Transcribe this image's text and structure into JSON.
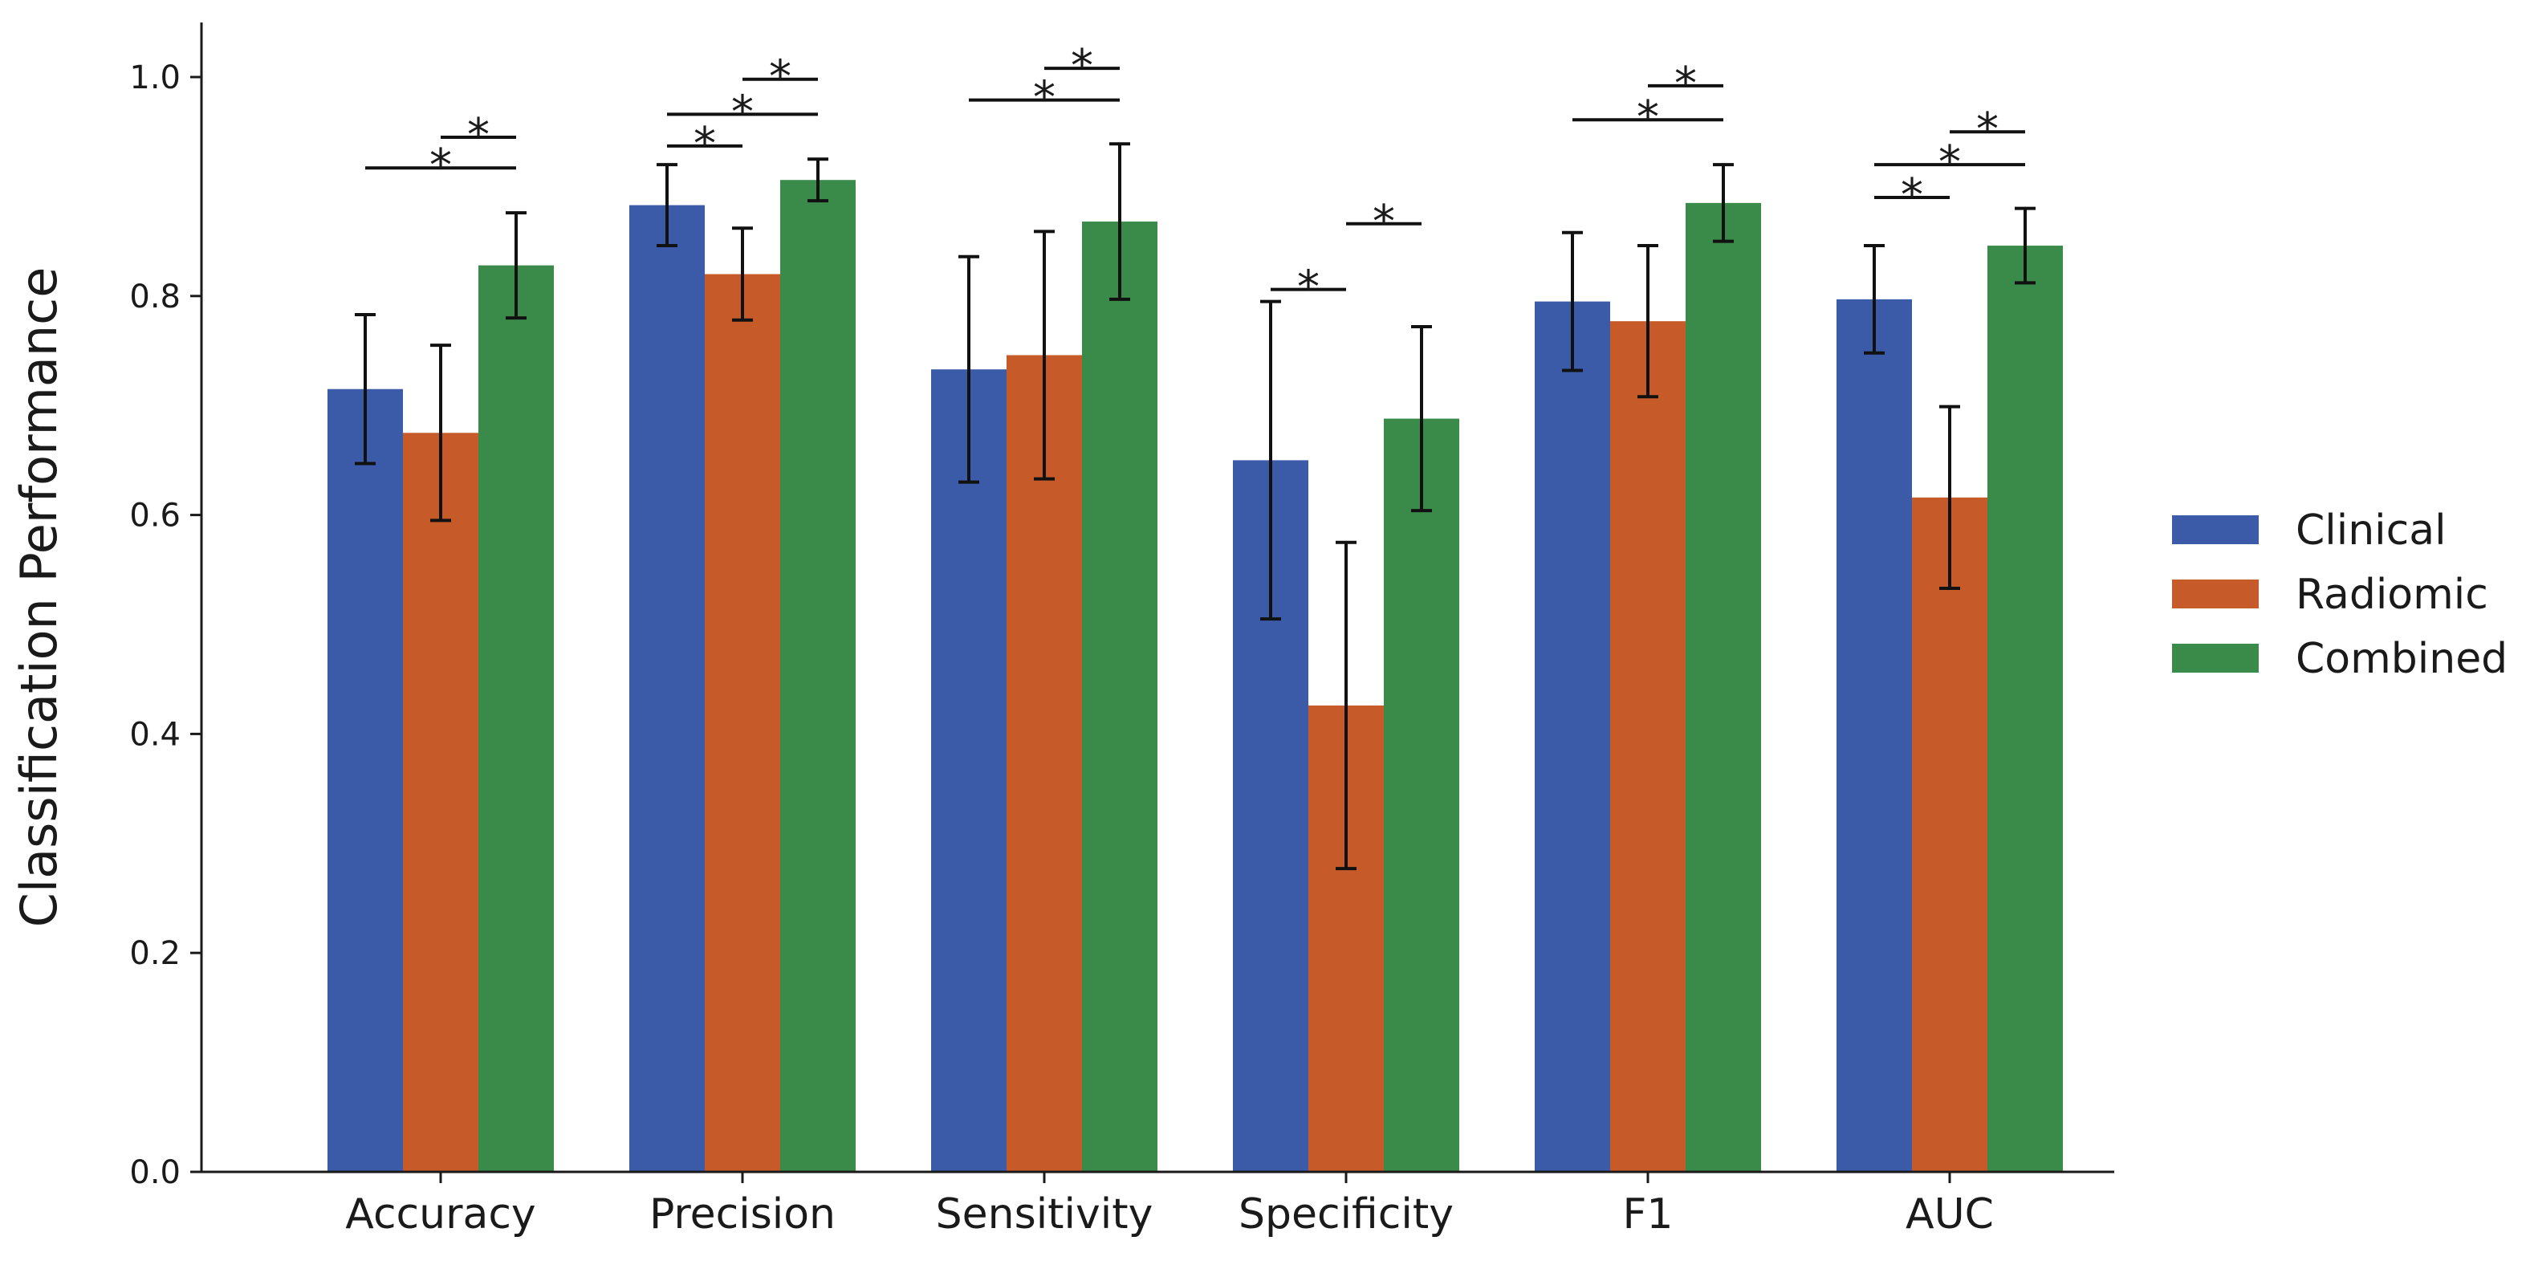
{
  "chart_data": {
    "type": "bar",
    "title": "",
    "xlabel": "",
    "ylabel": "Classification Performance",
    "ylim": [
      0,
      1.05
    ],
    "yticks": [
      0.0,
      0.2,
      0.4,
      0.6,
      0.8,
      1.0
    ],
    "ytick_labels": [
      "0.0",
      "0.2",
      "0.4",
      "0.6",
      "0.8",
      "1.0"
    ],
    "categories": [
      "Accuracy",
      "Precision",
      "Sensitivity",
      "Specificity",
      "F1",
      "AUC"
    ],
    "series": [
      {
        "name": "Clinical",
        "color": "#3b5ba8",
        "values": [
          0.715,
          0.883,
          0.733,
          0.65,
          0.795,
          0.797
        ],
        "errors": [
          0.068,
          0.037,
          0.103,
          0.145,
          0.063,
          0.049
        ]
      },
      {
        "name": "Radiomic",
        "color": "#c65a28",
        "values": [
          0.675,
          0.82,
          0.746,
          0.426,
          0.777,
          0.616
        ],
        "errors": [
          0.08,
          0.042,
          0.113,
          0.149,
          0.069,
          0.083
        ]
      },
      {
        "name": "Combined",
        "color": "#3a8a4a",
        "values": [
          0.828,
          0.906,
          0.868,
          0.688,
          0.885,
          0.846
        ],
        "errors": [
          0.048,
          0.019,
          0.071,
          0.084,
          0.035,
          0.034
        ]
      }
    ],
    "significance": [
      {
        "category": 0,
        "from": 0,
        "to": 2,
        "level": 0.917,
        "label": "*"
      },
      {
        "category": 0,
        "from": 1,
        "to": 2,
        "level": 0.945,
        "label": "*"
      },
      {
        "category": 1,
        "from": 0,
        "to": 1,
        "level": 0.937,
        "label": "*"
      },
      {
        "category": 1,
        "from": 0,
        "to": 2,
        "level": 0.966,
        "label": "*"
      },
      {
        "category": 1,
        "from": 1,
        "to": 2,
        "level": 0.998,
        "label": "*"
      },
      {
        "category": 2,
        "from": 0,
        "to": 2,
        "level": 0.979,
        "label": "*"
      },
      {
        "category": 2,
        "from": 1,
        "to": 2,
        "level": 1.008,
        "label": "*"
      },
      {
        "category": 3,
        "from": 0,
        "to": 1,
        "level": 0.806,
        "label": "*"
      },
      {
        "category": 3,
        "from": 1,
        "to": 2,
        "level": 0.866,
        "label": "*"
      },
      {
        "category": 4,
        "from": 0,
        "to": 2,
        "level": 0.961,
        "label": "*"
      },
      {
        "category": 4,
        "from": 1,
        "to": 2,
        "level": 0.992,
        "label": "*"
      },
      {
        "category": 5,
        "from": 0,
        "to": 1,
        "level": 0.89,
        "label": "*"
      },
      {
        "category": 5,
        "from": 0,
        "to": 2,
        "level": 0.92,
        "label": "*"
      },
      {
        "category": 5,
        "from": 1,
        "to": 2,
        "level": 0.95,
        "label": "*"
      }
    ],
    "legend_position": "right"
  }
}
